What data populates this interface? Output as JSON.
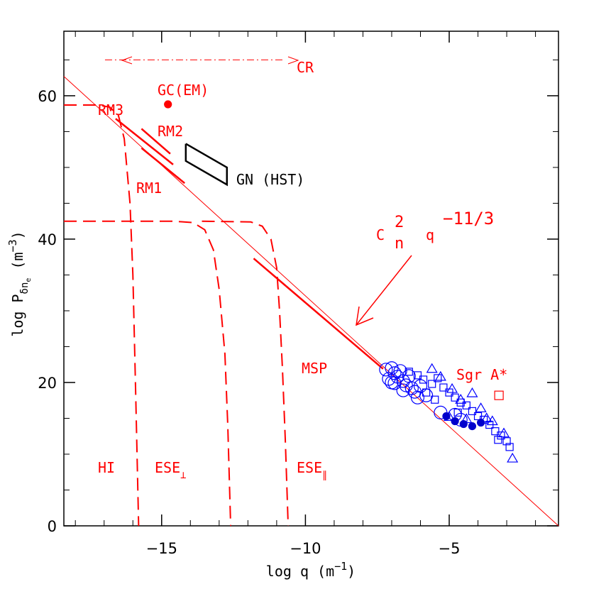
{
  "chart_data": {
    "type": "scatter",
    "xlabel": {
      "main": "log q  (m",
      "exp": "−1",
      "close": ")"
    },
    "ylabel": {
      "main": "log P",
      "sub": "δn",
      "subsub": "e",
      "unit": "  (m",
      "exp": "−3",
      "close": ")"
    },
    "xlim": [
      -18.4,
      -1.2
    ],
    "ylim": [
      0,
      69
    ],
    "xticks": [
      {
        "value": -15,
        "label": "−15"
      },
      {
        "value": -10,
        "label": "−10"
      },
      {
        "value": -5,
        "label": "−5"
      }
    ],
    "yticks": [
      0,
      20,
      40,
      60
    ],
    "xminorticks": [
      -18,
      -17,
      -16,
      -14,
      -13,
      -12,
      -11,
      -9,
      -8,
      -7,
      -6,
      -4,
      -3,
      -2
    ],
    "yminorticks": [
      5,
      10,
      15,
      25,
      30,
      35,
      45,
      50,
      55,
      65
    ],
    "lines": [
      {
        "style": "thin",
        "color": "#ff0000",
        "x": [
          -18.4,
          -1.2
        ],
        "y": [
          62.7,
          0
        ]
      },
      {
        "style": "dashed",
        "color": "#ff0000",
        "x": [
          -18.4,
          -17.2,
          -16.8,
          -16.5,
          -16.3,
          -16.1,
          -16.0,
          -15.9,
          -15.8
        ],
        "y": [
          58.7,
          58.7,
          58.4,
          57.2,
          54,
          45,
          35,
          18,
          0
        ]
      },
      {
        "style": "dashed",
        "color": "#ff0000",
        "x": [
          -18.4,
          -14.6,
          -13.9,
          -13.5,
          -13.2,
          -13.0,
          -12.8,
          -12.7,
          -12.6
        ],
        "y": [
          42.5,
          42.5,
          42.3,
          41.3,
          38.5,
          33,
          24,
          14,
          0
        ]
      },
      {
        "style": "dashed",
        "color": "#ff0000",
        "x": [
          -13.6,
          -11.9,
          -11.5,
          -11.2,
          -11.0,
          -10.9,
          -10.8,
          -10.7,
          -10.6
        ],
        "y": [
          42.5,
          42.4,
          41.8,
          40,
          36,
          30,
          22,
          12,
          0
        ]
      },
      {
        "style": "solid",
        "color": "#ff0000",
        "x": [
          -16.6,
          -14.6
        ],
        "y": [
          56.8,
          50.4
        ]
      },
      {
        "style": "solid",
        "color": "#ff0000",
        "x": [
          -15.7,
          -14.7
        ],
        "y": [
          55.4,
          51.9
        ]
      },
      {
        "style": "solid",
        "color": "#ff0000",
        "x": [
          -15.7,
          -14.2
        ],
        "y": [
          52.7,
          47.8
        ]
      },
      {
        "style": "solid",
        "color": "#ff0000",
        "x": [
          -11.8,
          -7.3
        ],
        "y": [
          37.3,
          21.9
        ]
      },
      {
        "style": "solid",
        "color": "#000000",
        "x": [
          -14.16,
          -14.16,
          -12.73,
          -12.73,
          -14.16
        ],
        "y": [
          53.3,
          50.9,
          47.6,
          50.0,
          53.3
        ]
      },
      {
        "style": "dashdot",
        "color": "#ff0000",
        "x": [
          -16.97,
          -10.8
        ],
        "y": [
          65.0,
          65.0
        ]
      }
    ],
    "series": [
      {
        "marker": "circle",
        "color": "#0000ff",
        "x": [
          -7.2,
          -7.0,
          -6.9,
          -6.8,
          -7.1,
          -6.7,
          -6.6,
          -6.5,
          -6.9,
          -6.4,
          -6.3,
          -6.2,
          -6.0,
          -6.6,
          -7.0,
          -5.8,
          -6.1,
          -5.3,
          -4.8,
          -4.6
        ],
        "y": [
          21.8,
          22.0,
          21.3,
          20.8,
          20.5,
          21.6,
          20.2,
          19.6,
          19.9,
          20.9,
          19.2,
          18.7,
          19.5,
          18.9,
          20.0,
          18.2,
          17.9,
          15.8,
          15.5,
          14.8
        ]
      },
      {
        "marker": "square",
        "color": "#0000ff",
        "x": [
          -6.4,
          -6.1,
          -5.9,
          -5.6,
          -5.4,
          -5.2,
          -5.0,
          -4.8,
          -4.6,
          -4.4,
          -4.2,
          -4.0,
          -3.8,
          -3.6,
          -3.4,
          -3.2,
          -3.0,
          -2.9,
          -3.3,
          -4.7,
          -5.5,
          -5.8
        ],
        "y": [
          21.5,
          21.0,
          20.4,
          19.8,
          20.6,
          19.3,
          18.6,
          17.9,
          17.2,
          16.8,
          16.0,
          15.3,
          14.8,
          14.1,
          13.2,
          12.6,
          11.8,
          11.0,
          12.0,
          15.8,
          17.6,
          18.6
        ]
      },
      {
        "marker": "triangle",
        "color": "#0000ff",
        "x": [
          -5.6,
          -5.3,
          -4.9,
          -4.2,
          -3.9,
          -3.5,
          -3.1,
          -2.8,
          -4.6,
          -5.0,
          -4.4,
          -3.7
        ],
        "y": [
          21.9,
          20.8,
          19.1,
          18.5,
          16.4,
          14.6,
          12.9,
          9.4,
          17.6,
          15.2,
          14.9,
          15.0
        ]
      },
      {
        "marker": "dot",
        "color": "#0000cc",
        "x": [
          -5.1,
          -4.8,
          -4.5,
          -4.2,
          -3.9
        ],
        "y": [
          15.3,
          14.6,
          14.2,
          13.9,
          14.4
        ]
      },
      {
        "marker": "dot",
        "color": "#ff0000",
        "x": [
          -14.78
        ],
        "y": [
          58.8
        ]
      },
      {
        "marker": "open-square",
        "color": "#ff0000",
        "x": [
          -3.27
        ],
        "y": [
          18.2
        ]
      }
    ],
    "annotations": {
      "gc": "GC(EM)",
      "rm3": "RM3",
      "rm2": "RM2",
      "rm1": "RM1",
      "gn": "GN (HST)",
      "msp": "MSP",
      "sgr": "Sgr A*",
      "hi": "HI",
      "ese1": "ESE",
      "ese1sub": "⊥",
      "ese2": "ESE",
      "ese2sub": "∥",
      "cr": "CR",
      "law": {
        "c": "C",
        "csup": "2",
        "csub": "n",
        "q": "q",
        "exp": "−11/3"
      }
    }
  }
}
